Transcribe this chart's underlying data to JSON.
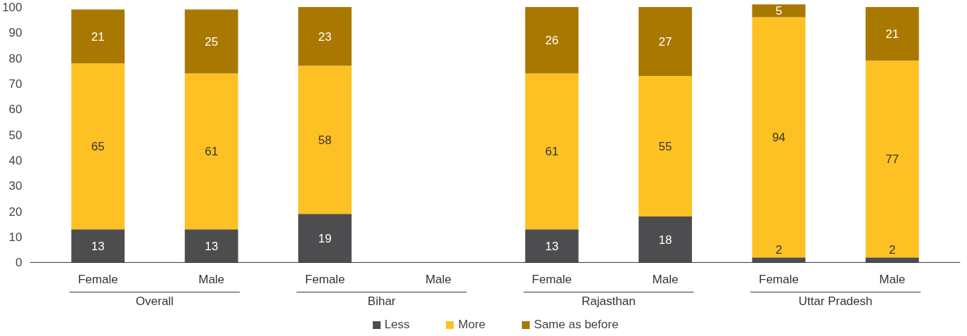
{
  "chart_data": {
    "type": "bar",
    "stacked": true,
    "data_labels": true,
    "legend": "bottom",
    "grid": false,
    "categories": [
      "Female",
      "Male",
      "Female",
      "Male",
      "Female",
      "Male",
      "Female",
      "Male"
    ],
    "annotations": [
      "Overall",
      "Bihar",
      "Rajasthan",
      "Uttar Pradesh"
    ],
    "ylim": [
      0,
      101
    ],
    "yticks": [
      0,
      10,
      20,
      30,
      40,
      50,
      60,
      70,
      80,
      90,
      100
    ],
    "series": [
      {
        "name": "Less",
        "color": "#4d4d4f",
        "values": [
          13,
          13,
          19,
          null,
          13,
          18,
          2,
          2
        ]
      },
      {
        "name": "More",
        "color": "#fec124",
        "values": [
          65,
          61,
          58,
          null,
          61,
          55,
          94,
          77
        ]
      },
      {
        "name": "Same as before",
        "color": "#a97800",
        "values": [
          21,
          25,
          23,
          null,
          26,
          27,
          5,
          21
        ]
      }
    ]
  }
}
